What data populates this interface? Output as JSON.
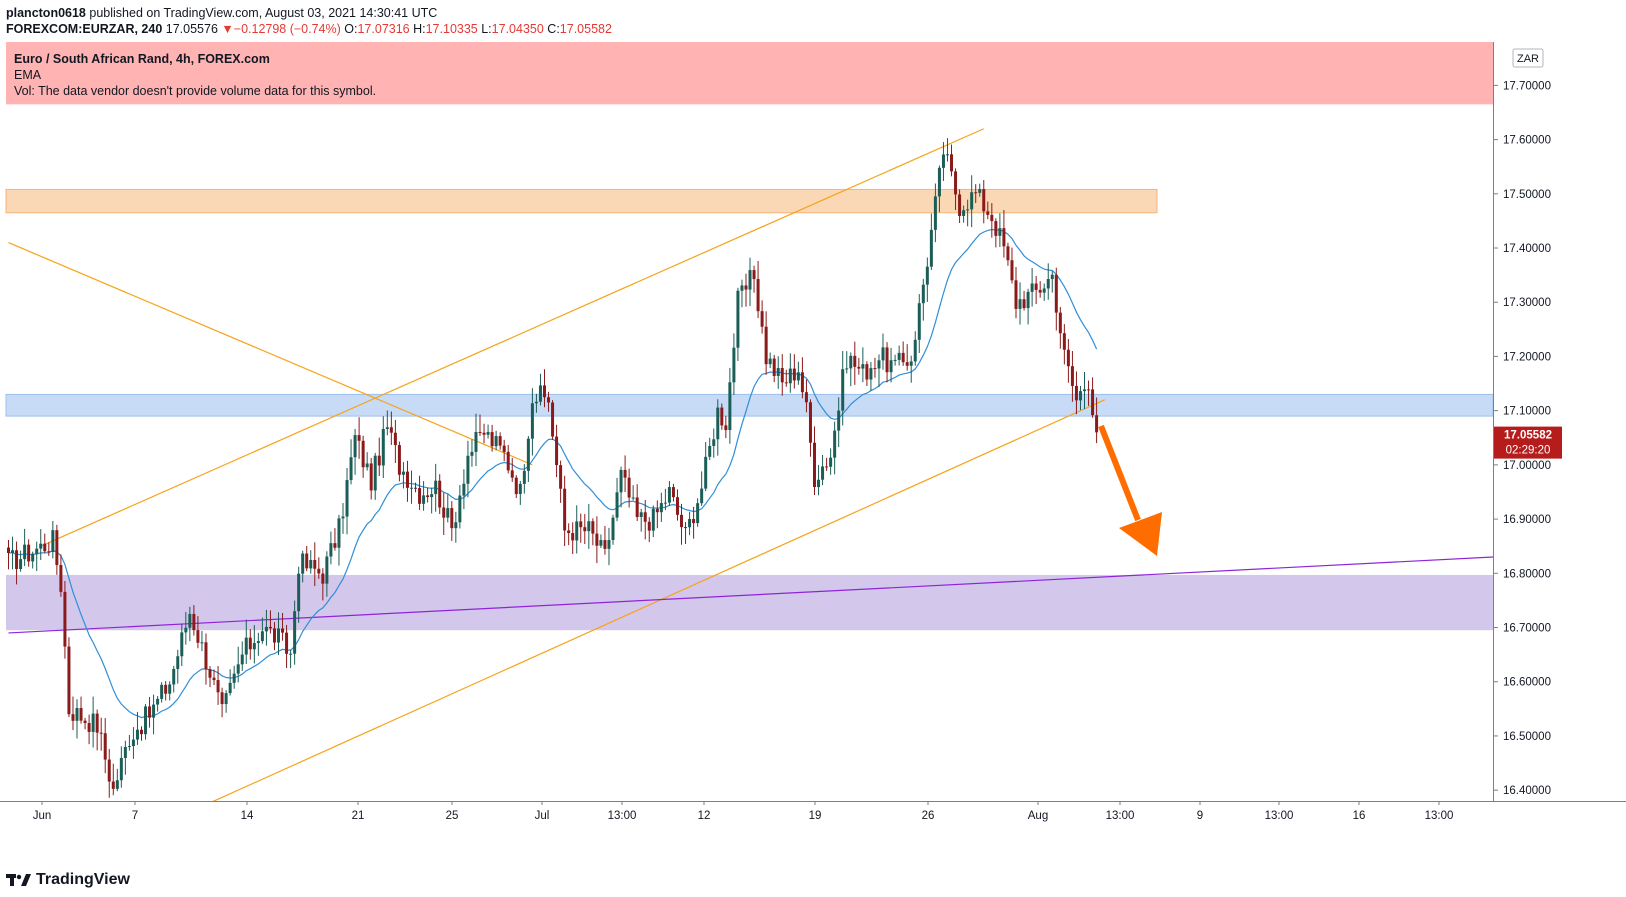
{
  "header": {
    "publisher": "plancton0618",
    "published_text": "published on TradingView.com, August 03, 2021 14:30:41 UTC",
    "symbol": "FOREXCOM:EURZAR, 240",
    "last": "17.05576",
    "change_arrow": "▼",
    "change": "−0.12798 (−0.74%)",
    "o_label": "O:",
    "o_val": "17.07316",
    "h_label": "H:",
    "h_val": "17.10335",
    "l_label": "L:",
    "l_val": "17.04350",
    "c_label": "C:",
    "c_val": "17.05582"
  },
  "legend": {
    "title": "Euro / South African Rand, 4h, FOREX.com",
    "ema": "EMA",
    "vol": "Vol: The data vendor doesn't provide volume data for this symbol."
  },
  "currency_badge": "ZAR",
  "price_badge": {
    "price": "17.05582",
    "countdown": "02:29:20"
  },
  "footer": {
    "brand": "TradingView"
  },
  "colors": {
    "up": "#1b5e57",
    "down": "#8b1a1a",
    "ema": "#2f8fd8",
    "trendline": "#f7a21b",
    "purple_line": "#8e24d8",
    "resistance_zone": "#ffb3b3",
    "orange_zone": "#fad7b5",
    "blue_zone": "#c7dbf6",
    "purple_zone": "#d4c7ec",
    "arrow": "#ff6d00",
    "badge": "#b71c1c"
  },
  "chart_data": {
    "type": "candlestick",
    "y_axis": {
      "range": [
        16.38,
        17.78
      ],
      "ticks": [
        17.7,
        17.6,
        17.5,
        17.4,
        17.3,
        17.2,
        17.1,
        17.0,
        16.9,
        16.8,
        16.7,
        16.6,
        16.5,
        16.4
      ],
      "tick_labels": [
        "17.70000",
        "17.60000",
        "17.50000",
        "17.40000",
        "17.30000",
        "17.20000",
        "17.10000",
        "17.00000",
        "16.90000",
        "16.80000",
        "16.70000",
        "16.60000",
        "16.50000",
        "16.40000"
      ]
    },
    "x_axis": {
      "tick_labels": [
        "Jun",
        "7",
        "14",
        "21",
        "25",
        "Jul",
        "13:00",
        "12",
        "19",
        "26",
        "Aug",
        "13:00",
        "9",
        "13:00",
        "16",
        "13:00"
      ]
    },
    "zones": [
      {
        "name": "resistance",
        "from": 17.665,
        "to": 17.78
      },
      {
        "name": "supply",
        "from": 17.465,
        "to": 17.508
      },
      {
        "name": "pivot",
        "from": 17.09,
        "to": 17.13
      },
      {
        "name": "demand",
        "from": 16.695,
        "to": 16.797
      }
    ],
    "keypoints": [
      [
        0,
        16.82
      ],
      [
        11,
        16.86
      ],
      [
        13,
        16.78
      ],
      [
        15,
        16.55
      ],
      [
        22,
        16.52
      ],
      [
        26,
        16.4
      ],
      [
        30,
        16.5
      ],
      [
        35,
        16.54
      ],
      [
        40,
        16.6
      ],
      [
        45,
        16.73
      ],
      [
        50,
        16.62
      ],
      [
        53,
        16.54
      ],
      [
        58,
        16.65
      ],
      [
        63,
        16.7
      ],
      [
        67,
        16.68
      ],
      [
        70,
        16.65
      ],
      [
        72,
        16.82
      ],
      [
        78,
        16.8
      ],
      [
        82,
        16.88
      ],
      [
        86,
        17.05
      ],
      [
        90,
        16.97
      ],
      [
        94,
        17.07
      ],
      [
        97,
        17.0
      ],
      [
        102,
        16.95
      ],
      [
        106,
        16.96
      ],
      [
        110,
        16.88
      ],
      [
        114,
        17.02
      ],
      [
        118,
        17.06
      ],
      [
        123,
        17.02
      ],
      [
        127,
        16.95
      ],
      [
        130,
        17.13
      ],
      [
        134,
        17.12
      ],
      [
        138,
        16.88
      ],
      [
        144,
        16.88
      ],
      [
        148,
        16.83
      ],
      [
        152,
        16.98
      ],
      [
        156,
        16.9
      ],
      [
        160,
        16.9
      ],
      [
        164,
        16.95
      ],
      [
        168,
        16.87
      ],
      [
        172,
        16.96
      ],
      [
        176,
        17.1
      ],
      [
        178,
        17.08
      ],
      [
        181,
        17.3
      ],
      [
        185,
        17.35
      ],
      [
        188,
        17.2
      ],
      [
        192,
        17.15
      ],
      [
        196,
        17.18
      ],
      [
        198,
        17.1
      ],
      [
        200,
        16.98
      ],
      [
        204,
        17.02
      ],
      [
        208,
        17.2
      ],
      [
        212,
        17.17
      ],
      [
        216,
        17.2
      ],
      [
        220,
        17.18
      ],
      [
        224,
        17.2
      ],
      [
        228,
        17.38
      ],
      [
        232,
        17.58
      ],
      [
        236,
        17.48
      ],
      [
        240,
        17.5
      ],
      [
        244,
        17.46
      ],
      [
        247,
        17.4
      ],
      [
        250,
        17.3
      ],
      [
        255,
        17.32
      ],
      [
        259,
        17.35
      ],
      [
        262,
        17.2
      ],
      [
        265,
        17.12
      ],
      [
        268,
        17.16
      ],
      [
        270,
        17.06
      ]
    ],
    "lines": [
      {
        "name": "channel-upper",
        "from": [
          8,
          16.85
        ],
        "to": [
          242,
          17.62
        ]
      },
      {
        "name": "channel-lower",
        "from": [
          48,
          16.37
        ],
        "to": [
          272,
          17.12
        ]
      },
      {
        "name": "descending",
        "from": [
          0,
          17.41
        ],
        "to": [
          130,
          17.0
        ]
      },
      {
        "name": "purple",
        "from": [
          0,
          16.69
        ],
        "to": [
          370,
          16.83
        ]
      }
    ]
  }
}
